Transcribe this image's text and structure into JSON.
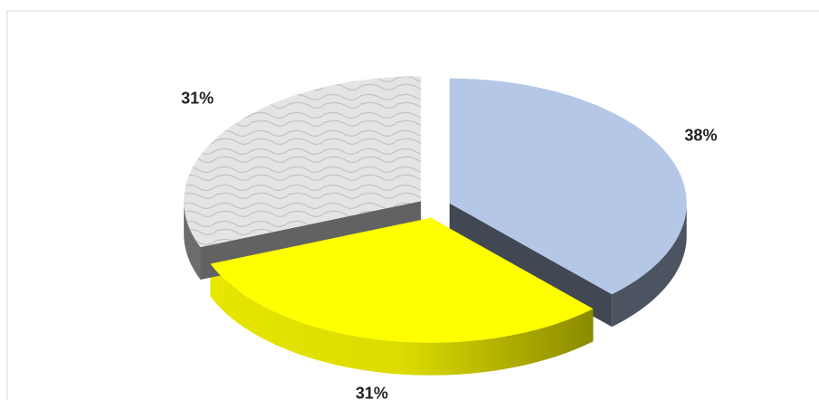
{
  "chart_data": {
    "type": "pie",
    "values": [
      38,
      31,
      31
    ],
    "value_labels": [
      "38%",
      "31%",
      "31%"
    ],
    "colors": [
      "#b4c7e7",
      "#ffff00",
      "#d9d9d9"
    ]
  }
}
